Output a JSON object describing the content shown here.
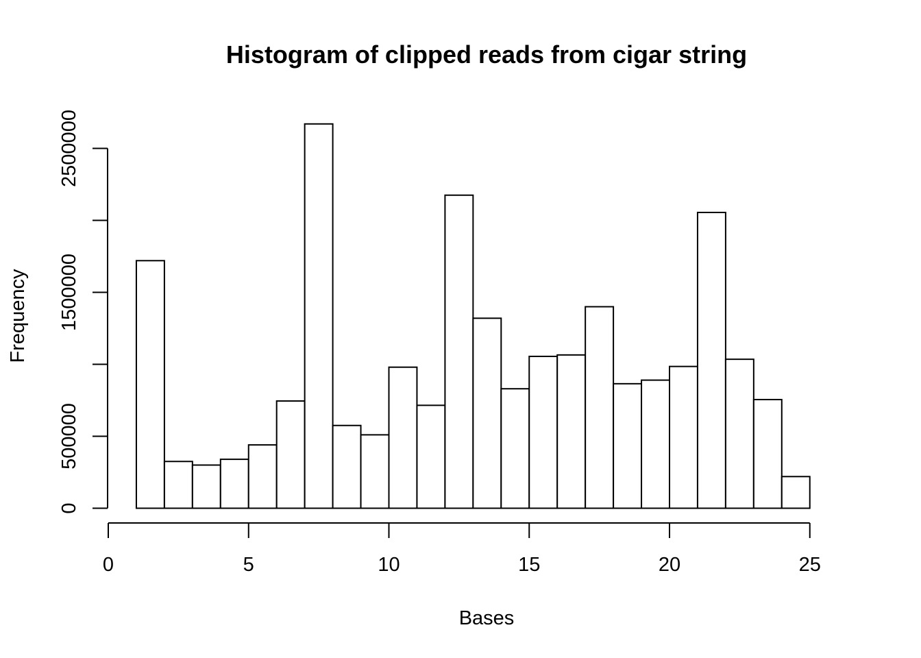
{
  "chart_data": {
    "type": "bar",
    "subtype": "histogram",
    "title": "Histogram of clipped reads from cigar string",
    "xlabel": "Bases",
    "ylabel": "Frequency",
    "xlim": [
      0,
      26
    ],
    "ylim": [
      0,
      2750000
    ],
    "bins": [
      {
        "x0": 1,
        "x1": 2,
        "value": 1720000
      },
      {
        "x0": 2,
        "x1": 3,
        "value": 325000
      },
      {
        "x0": 3,
        "x1": 4,
        "value": 300000
      },
      {
        "x0": 4,
        "x1": 5,
        "value": 340000
      },
      {
        "x0": 5,
        "x1": 6,
        "value": 440000
      },
      {
        "x0": 6,
        "x1": 7,
        "value": 745000
      },
      {
        "x0": 7,
        "x1": 8,
        "value": 2670000
      },
      {
        "x0": 8,
        "x1": 9,
        "value": 575000
      },
      {
        "x0": 9,
        "x1": 10,
        "value": 510000
      },
      {
        "x0": 10,
        "x1": 11,
        "value": 980000
      },
      {
        "x0": 11,
        "x1": 12,
        "value": 715000
      },
      {
        "x0": 12,
        "x1": 13,
        "value": 2175000
      },
      {
        "x0": 13,
        "x1": 14,
        "value": 1320000
      },
      {
        "x0": 14,
        "x1": 15,
        "value": 830000
      },
      {
        "x0": 15,
        "x1": 16,
        "value": 1055000
      },
      {
        "x0": 16,
        "x1": 17,
        "value": 1065000
      },
      {
        "x0": 17,
        "x1": 18,
        "value": 1400000
      },
      {
        "x0": 18,
        "x1": 19,
        "value": 865000
      },
      {
        "x0": 19,
        "x1": 20,
        "value": 890000
      },
      {
        "x0": 20,
        "x1": 21,
        "value": 985000
      },
      {
        "x0": 21,
        "x1": 22,
        "value": 2055000
      },
      {
        "x0": 22,
        "x1": 23,
        "value": 1035000
      },
      {
        "x0": 23,
        "x1": 24,
        "value": 755000
      },
      {
        "x0": 24,
        "x1": 25,
        "value": 220000
      },
      {
        "x0": 25,
        "x1": 26,
        "value": 0
      }
    ],
    "x_ticks": [
      0,
      5,
      10,
      15,
      20,
      25
    ],
    "x_tick_labels": [
      "0",
      "5",
      "10",
      "15",
      "20",
      "25"
    ],
    "y_ticks": [
      0,
      500000,
      1000000,
      1500000,
      2000000,
      2500000
    ],
    "y_tick_labels": [
      "0",
      "500000",
      "",
      "1500000",
      "",
      "2500000"
    ],
    "grid": false,
    "legend": "none",
    "colors": {
      "bar_fill": "#ffffff",
      "bar_stroke": "#000000",
      "axis": "#000000",
      "background": "#ffffff"
    }
  }
}
